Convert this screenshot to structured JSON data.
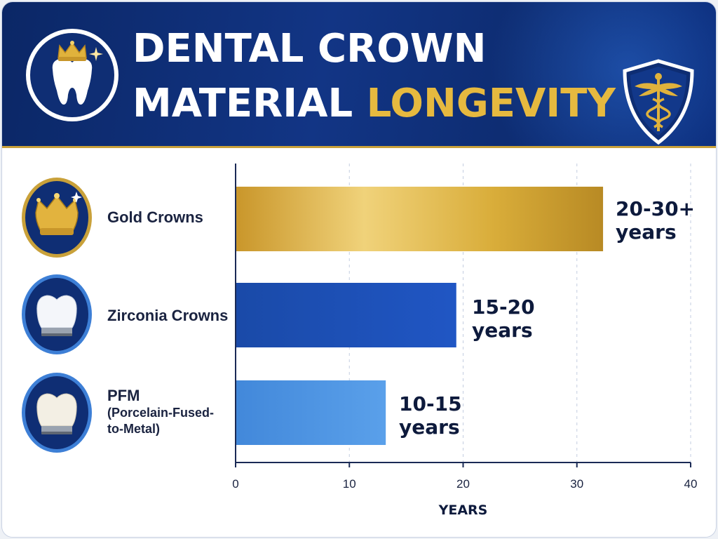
{
  "header": {
    "title_line1": "DENTAL CROWN",
    "title_line2_white": "MATERIAL ",
    "title_line2_gold": "LONGEVITY",
    "logo_left_icon": "tooth-with-crown-icon",
    "logo_right_icon": "caduceus-shield-icon"
  },
  "colors": {
    "header_bg": "#123585",
    "gold": "#d9ad3a",
    "zirconia_blue": "#1a4fb5",
    "pfm_blue": "#4a92e0",
    "title_gold": "#e6b93f"
  },
  "categories_display": [
    {
      "label_lines": [
        "Gold Crowns"
      ],
      "icon": "gold-crown-icon",
      "value_lines": [
        "20-30+",
        "years"
      ]
    },
    {
      "label_lines": [
        "Zirconia Crowns"
      ],
      "icon": "zirconia-crown-icon",
      "value_lines": [
        "15-20",
        "years"
      ]
    },
    {
      "label_lines": [
        "PFM",
        "(Porcelain-Fused-",
        "to-Metal)"
      ],
      "icon": "pfm-crown-icon",
      "value_lines": [
        "10-15",
        "years"
      ]
    }
  ],
  "chart_data": {
    "type": "bar",
    "orientation": "horizontal",
    "title": "DENTAL CROWN MATERIAL LONGEVITY",
    "categories": [
      "Gold Crowns",
      "Zirconia Crowns",
      "PFM (Porcelain-Fused-to-Metal)"
    ],
    "values": [
      32.3,
      19.4,
      13.2
    ],
    "data_labels": [
      "20-30+ years",
      "15-20 years",
      "10-15 years"
    ],
    "bar_colors": [
      "#d9ad3a",
      "#1a4fb5",
      "#4a92e0"
    ],
    "xlabel": "YEARS",
    "ylabel": "",
    "xlim": [
      0,
      40
    ],
    "xticks": [
      "0",
      "10",
      "20",
      "30",
      "40"
    ],
    "grid": "vertical dashed",
    "legend": "none"
  }
}
